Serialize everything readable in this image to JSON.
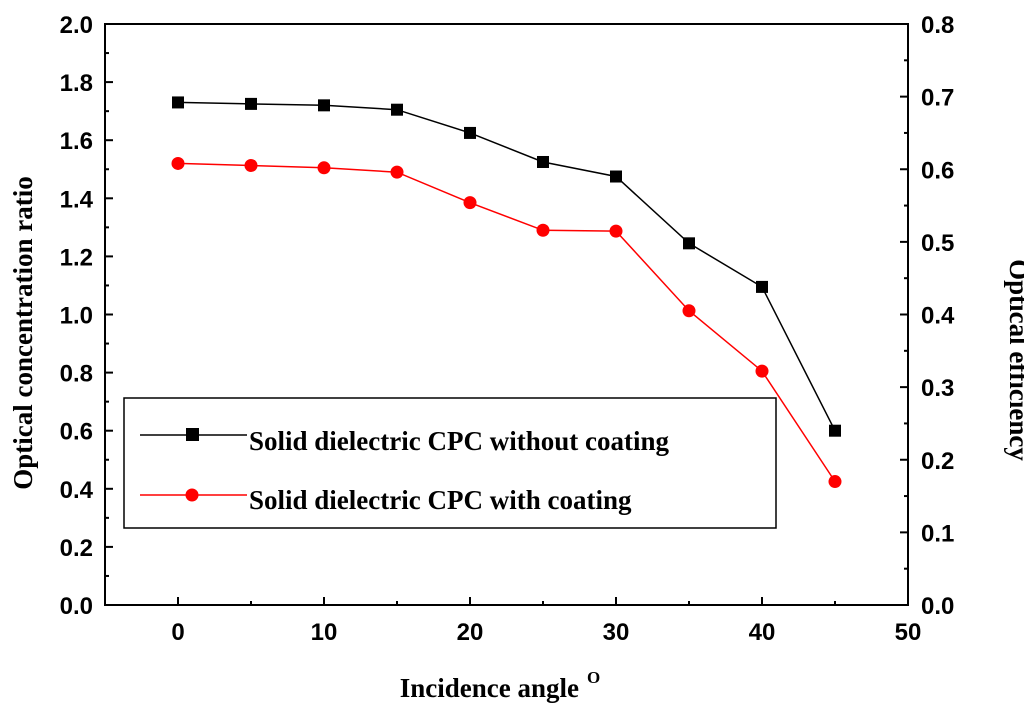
{
  "chart_data": {
    "type": "line",
    "title": "",
    "xlabel": "Incidence angle",
    "xlabel_superscript": "O",
    "ylabel": "Optical concentration ratio",
    "y2label": "Optical efficiency",
    "xlim": [
      -5,
      50
    ],
    "ylim": [
      0,
      2.0
    ],
    "y2lim": [
      0,
      0.8
    ],
    "x_ticks": [
      0,
      10,
      20,
      30,
      40,
      50
    ],
    "x_tick_labels": [
      "0",
      "10",
      "20",
      "30",
      "40",
      "50"
    ],
    "y_ticks": [
      0,
      0.2,
      0.4,
      0.6,
      0.8,
      1.0,
      1.2,
      1.4,
      1.6,
      1.8,
      2.0
    ],
    "y_tick_labels": [
      "0.0",
      "0.2",
      "0.4",
      "0.6",
      "0.8",
      "1.0",
      "1.2",
      "1.4",
      "1.6",
      "1.8",
      "2.0"
    ],
    "y2_ticks": [
      0,
      0.1,
      0.2,
      0.3,
      0.4,
      0.5,
      0.6,
      0.7,
      0.8
    ],
    "y2_tick_labels": [
      "0.0",
      "0.1",
      "0.2",
      "0.3",
      "0.4",
      "0.5",
      "0.6",
      "0.7",
      "0.8"
    ],
    "grid": false,
    "legend_position": "center-left",
    "x": [
      0,
      5,
      10,
      15,
      20,
      25,
      30,
      35,
      40,
      45
    ],
    "series": [
      {
        "name": "Solid dielectric CPC without coating",
        "marker": "square",
        "color": "#000000",
        "values": [
          1.73,
          1.725,
          1.72,
          1.705,
          1.625,
          1.525,
          1.475,
          1.245,
          1.095,
          0.6
        ]
      },
      {
        "name": "Solid dielectric CPC with coating",
        "marker": "circle",
        "color": "#ff0000",
        "values": [
          1.52,
          1.513,
          1.505,
          1.49,
          1.385,
          1.29,
          1.287,
          1.013,
          0.805,
          0.425
        ]
      }
    ]
  }
}
